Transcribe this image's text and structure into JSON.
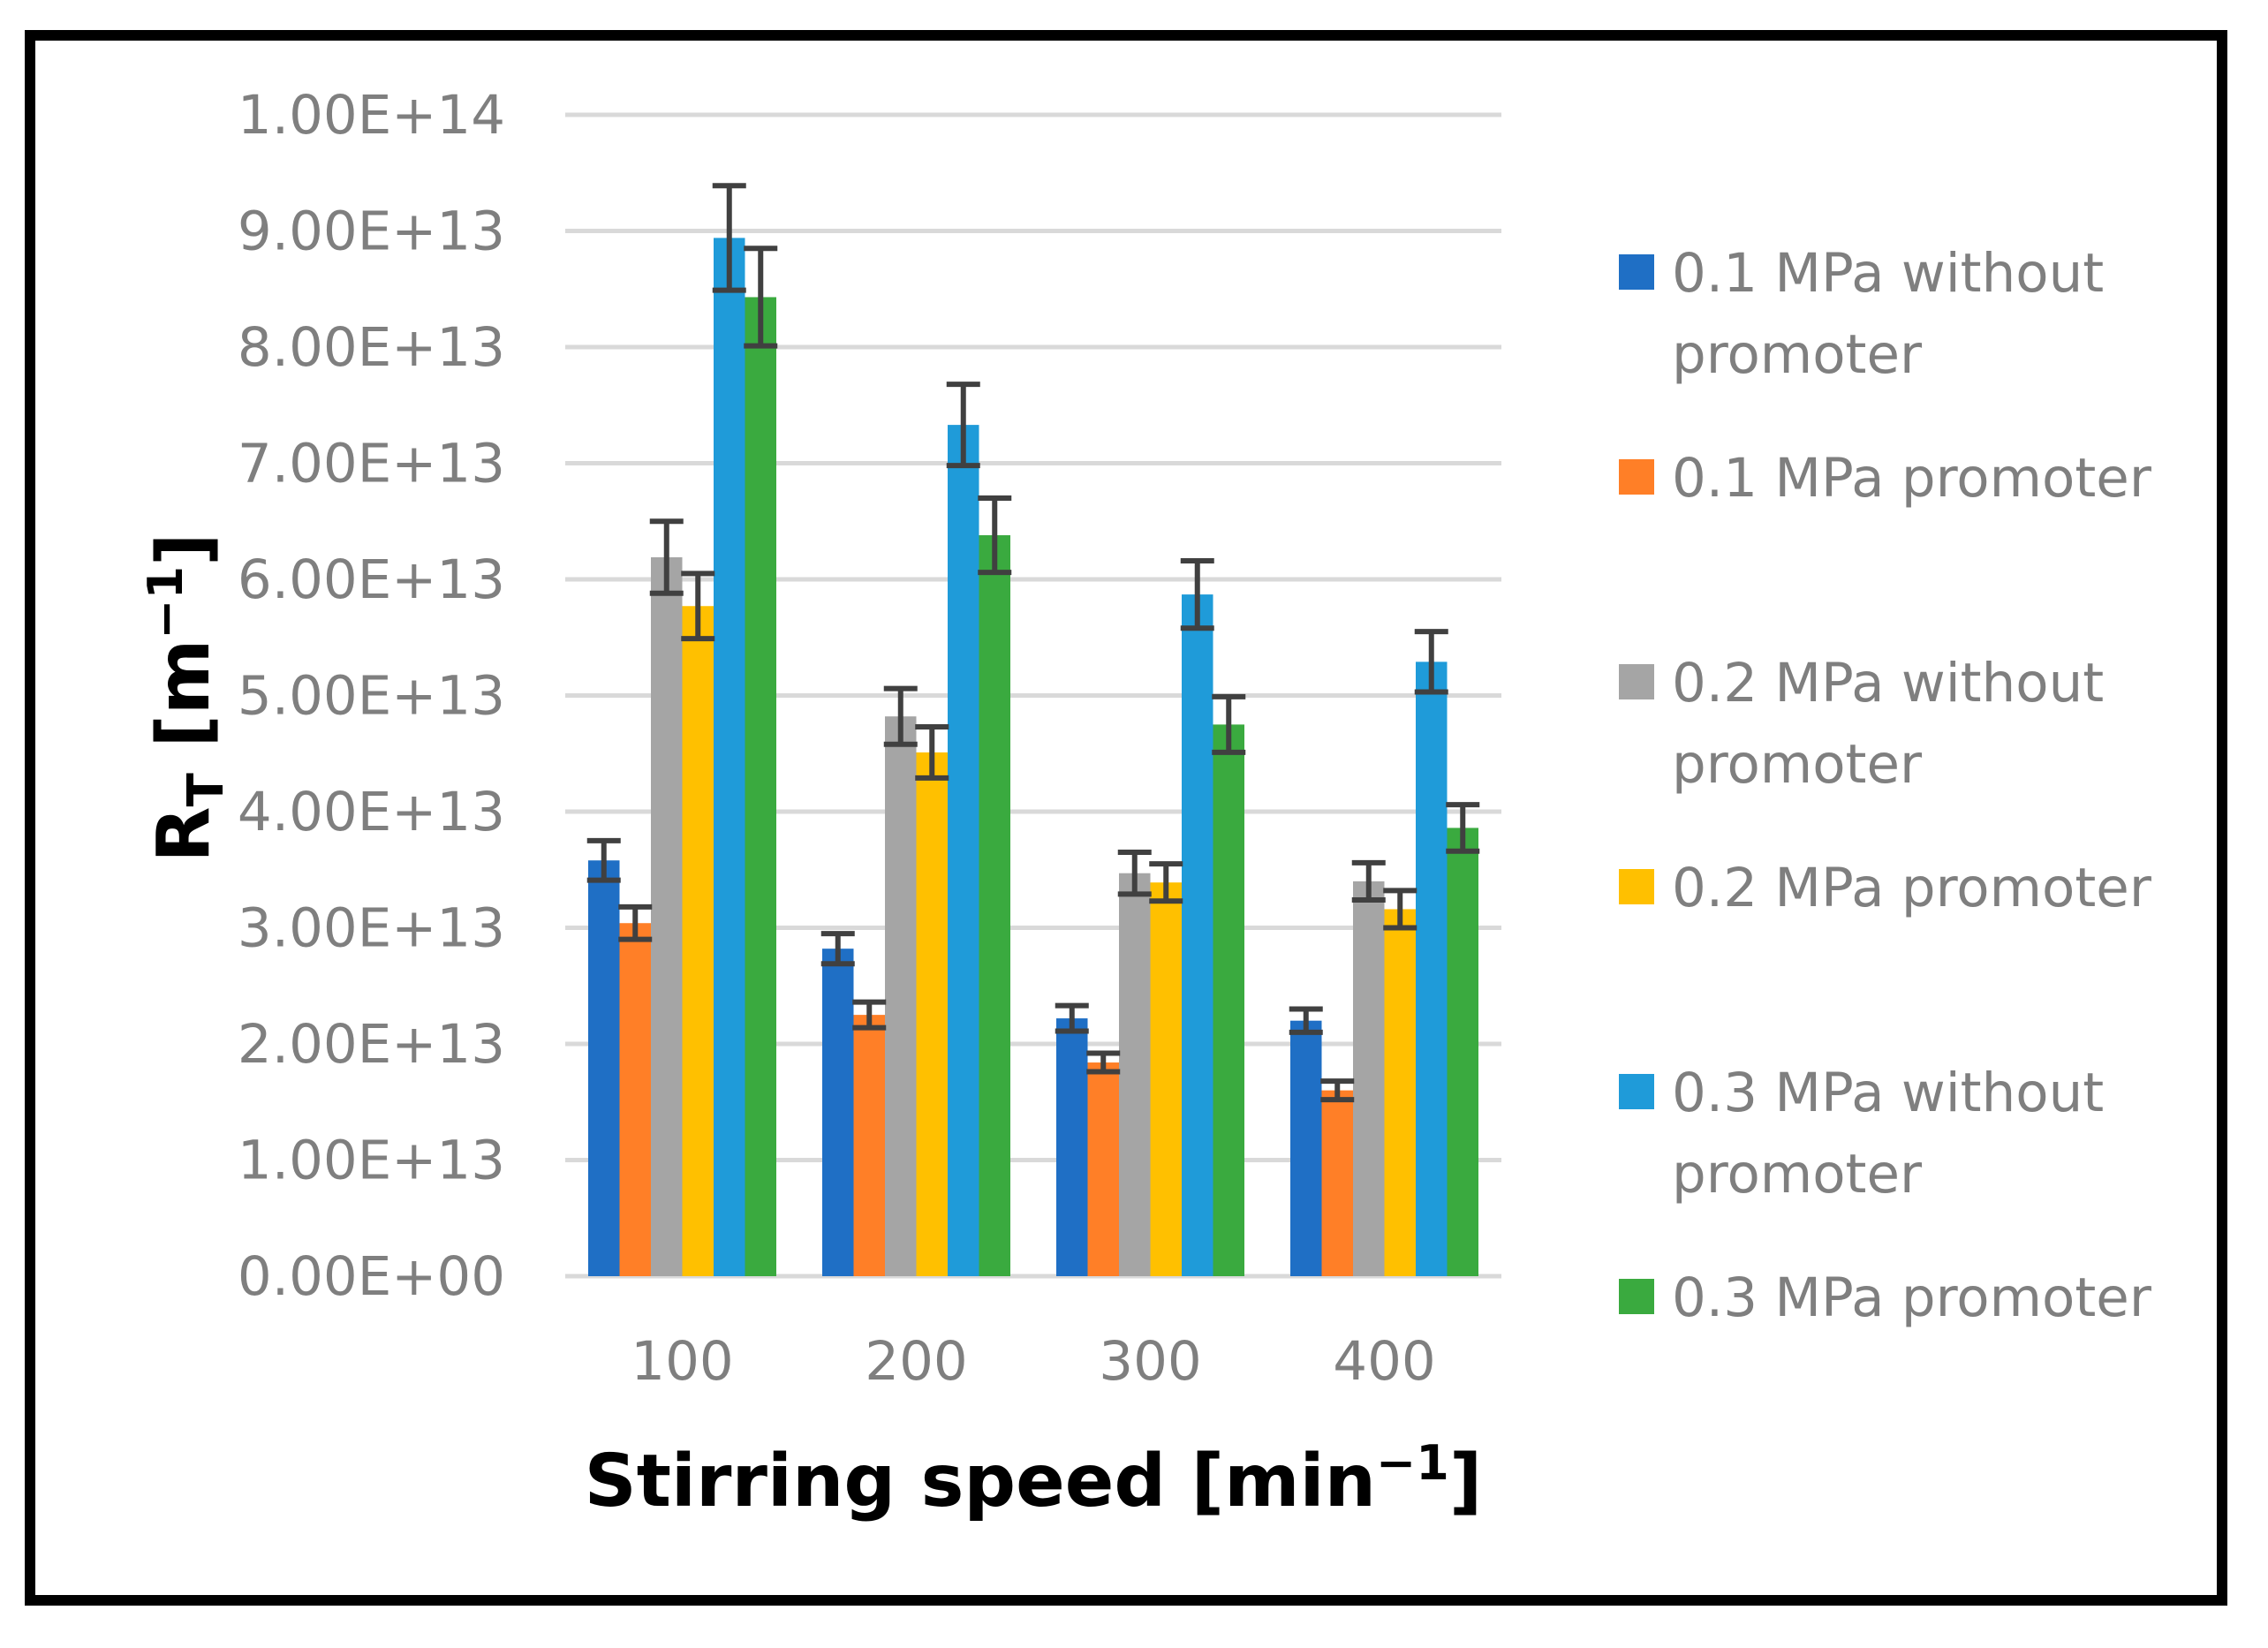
{
  "chart_data": {
    "type": "bar",
    "title": "",
    "xlabel": "Stirring speed [min",
    "xlabel_sup": "−1",
    "xlabel_tail": "]",
    "ylabel": "R",
    "ylabel_sub": "T",
    "ylabel_tail": " [m",
    "ylabel_sup": "−1",
    "ylabel_end": "]",
    "ylim": [
      0,
      100000000000000.0
    ],
    "yticks": [
      0,
      10000000000000.0,
      20000000000000.0,
      30000000000000.0,
      40000000000000.0,
      50000000000000.0,
      60000000000000.0,
      70000000000000.0,
      80000000000000.0,
      90000000000000.0,
      100000000000000.0
    ],
    "ytick_labels": [
      "0.00E+00",
      "1.00E+13",
      "2.00E+13",
      "3.00E+13",
      "4.00E+13",
      "5.00E+13",
      "6.00E+13",
      "7.00E+13",
      "8.00E+13",
      "9.00E+13",
      "1.00E+14"
    ],
    "categories": [
      "100",
      "200",
      "300",
      "400"
    ],
    "grid": true,
    "legend_position": "right",
    "series": [
      {
        "name": "0.1 MPa without promoter",
        "legend_lines": [
          "0.1 MPa without",
          "promoter"
        ],
        "color": "#1f6fc5",
        "values": [
          35800000000000.0,
          28200000000000.0,
          22200000000000.0,
          22000000000000.0
        ],
        "errors": [
          1700000000000.0,
          1300000000000.0,
          1100000000000.0,
          1000000000000.0
        ]
      },
      {
        "name": "0.1 MPa promoter",
        "legend_lines": [
          "0.1 MPa promoter"
        ],
        "color": "#ff7f27",
        "values": [
          30400000000000.0,
          22500000000000.0,
          18400000000000.0,
          16000000000000.0
        ],
        "errors": [
          1400000000000.0,
          1100000000000.0,
          800000000000.0,
          800000000000.0
        ]
      },
      {
        "name": "0.2 MPa without promoter",
        "legend_lines": [
          "0.2 MPa without",
          "promoter"
        ],
        "color": "#a5a5a5",
        "values": [
          61900000000000.0,
          48200000000000.0,
          34700000000000.0,
          34000000000000.0
        ],
        "errors": [
          3100000000000.0,
          2400000000000.0,
          1800000000000.0,
          1600000000000.0
        ]
      },
      {
        "name": "0.2 MPa promoter",
        "legend_lines": [
          "0.2 MPa promoter"
        ],
        "color": "#ffc000",
        "values": [
          57700000000000.0,
          45100000000000.0,
          33900000000000.0,
          31600000000000.0
        ],
        "errors": [
          2800000000000.0,
          2200000000000.0,
          1600000000000.0,
          1600000000000.0
        ]
      },
      {
        "name": "0.3 MPa without promoter",
        "legend_lines": [
          "0.3 MPa without",
          "promoter"
        ],
        "color": "#1f9bd9",
        "values": [
          89400000000000.0,
          73300000000000.0,
          58700000000000.0,
          52900000000000.0
        ],
        "errors": [
          4500000000000.0,
          3500000000000.0,
          2900000000000.0,
          2600000000000.0
        ]
      },
      {
        "name": "0.3 MPa promoter",
        "legend_lines": [
          "0.3 MPa promoter"
        ],
        "color": "#3aaa3f",
        "values": [
          84300000000000.0,
          63800000000000.0,
          47500000000000.0,
          38600000000000.0
        ],
        "errors": [
          4200000000000.0,
          3200000000000.0,
          2400000000000.0,
          2000000000000.0
        ]
      }
    ]
  },
  "colors": {
    "frame": "#000000",
    "grid": "#d9d9d9",
    "axis_text": "#7f7f7f",
    "error_bar": "#404040"
  }
}
